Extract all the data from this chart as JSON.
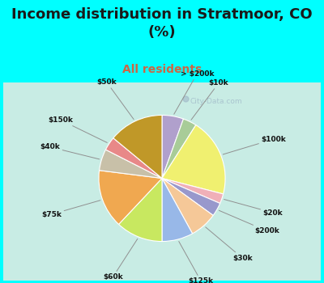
{
  "title": "Income distribution in Stratmoor, CO\n(%)",
  "subtitle": "All residents",
  "title_color": "#1a1a1a",
  "subtitle_color": "#cc6644",
  "background_color": "#00ffff",
  "chart_bg_outer": "#b0e8e0",
  "chart_bg_inner": "#e8f8f4",
  "slices": [
    {
      "label": "> $200k",
      "value": 5.5,
      "color": "#b0a0cc"
    },
    {
      "label": "$10k",
      "value": 3.5,
      "color": "#a8cc98"
    },
    {
      "label": "$100k",
      "value": 20.0,
      "color": "#f0f070"
    },
    {
      "label": "$20k",
      "value": 2.5,
      "color": "#f0b0b8"
    },
    {
      "label": "$200k",
      "value": 3.5,
      "color": "#9898cc"
    },
    {
      "label": "$30k",
      "value": 7.0,
      "color": "#f5c898"
    },
    {
      "label": "$125k",
      "value": 8.0,
      "color": "#98b8e8"
    },
    {
      "label": "$60k",
      "value": 12.0,
      "color": "#c8e860"
    },
    {
      "label": "$75k",
      "value": 15.0,
      "color": "#f0a850"
    },
    {
      "label": "$40k",
      "value": 5.5,
      "color": "#c8c0a8"
    },
    {
      "label": "$150k",
      "value": 3.5,
      "color": "#e88888"
    },
    {
      "label": "$50k",
      "value": 14.0,
      "color": "#c09828"
    }
  ],
  "watermark": "City-Data.com",
  "title_fontsize": 13,
  "subtitle_fontsize": 10
}
